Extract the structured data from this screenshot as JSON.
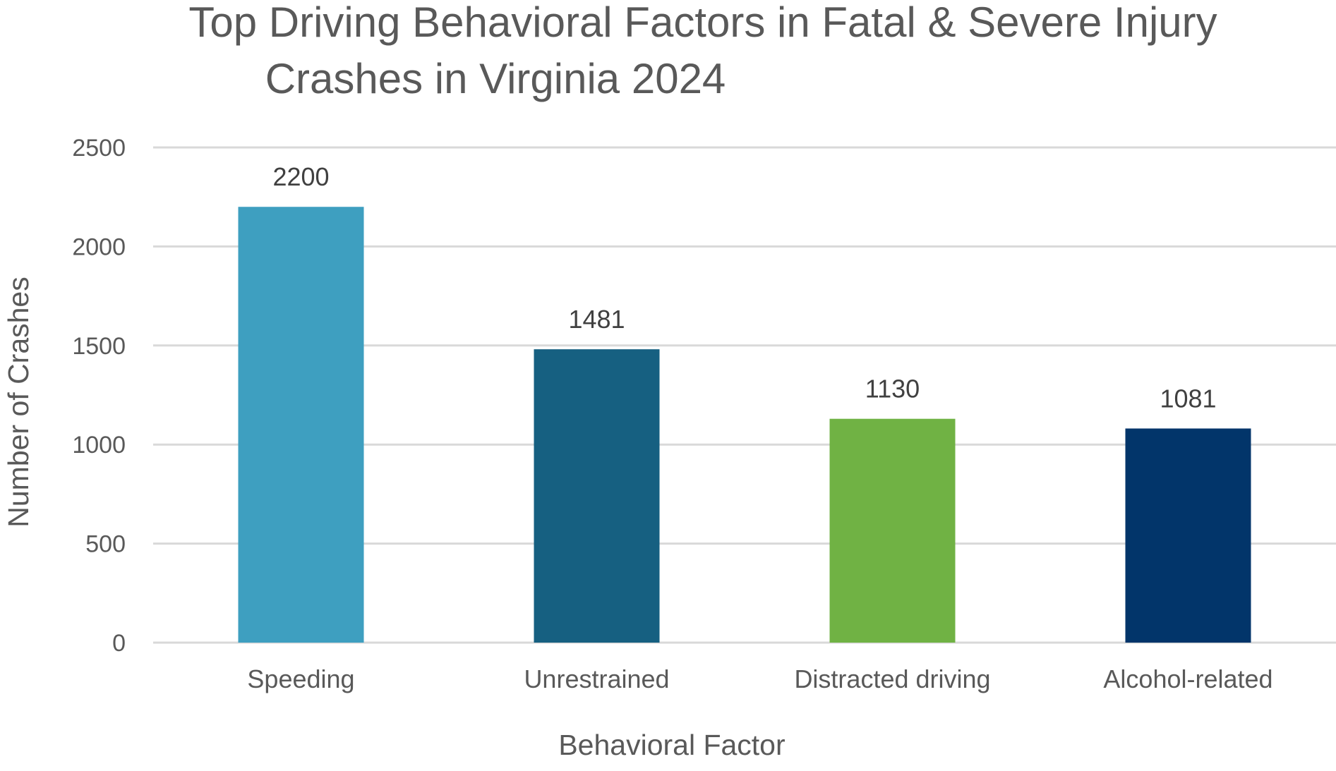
{
  "chart_data": {
    "type": "bar",
    "title_lines": [
      "Top Driving Behavioral Factors in Fatal & Severe Injury",
      "Crashes in Virginia 2024"
    ],
    "xlabel": "Behavioral Factor",
    "ylabel": "Number of Crashes",
    "categories": [
      "Speeding",
      "Unrestrained",
      "Distracted driving",
      "Alcohol-related"
    ],
    "values": [
      2200,
      1481,
      1130,
      1081
    ],
    "data_labels": [
      "2200",
      "1481",
      "1130",
      "1081"
    ],
    "colors": [
      "#3e9fc0",
      "#166081",
      "#70b244",
      "#02356a"
    ],
    "ylim": [
      0,
      2500
    ],
    "yticks": [
      0,
      500,
      1000,
      1500,
      2000,
      2500
    ],
    "grid": true,
    "legend": "none"
  }
}
